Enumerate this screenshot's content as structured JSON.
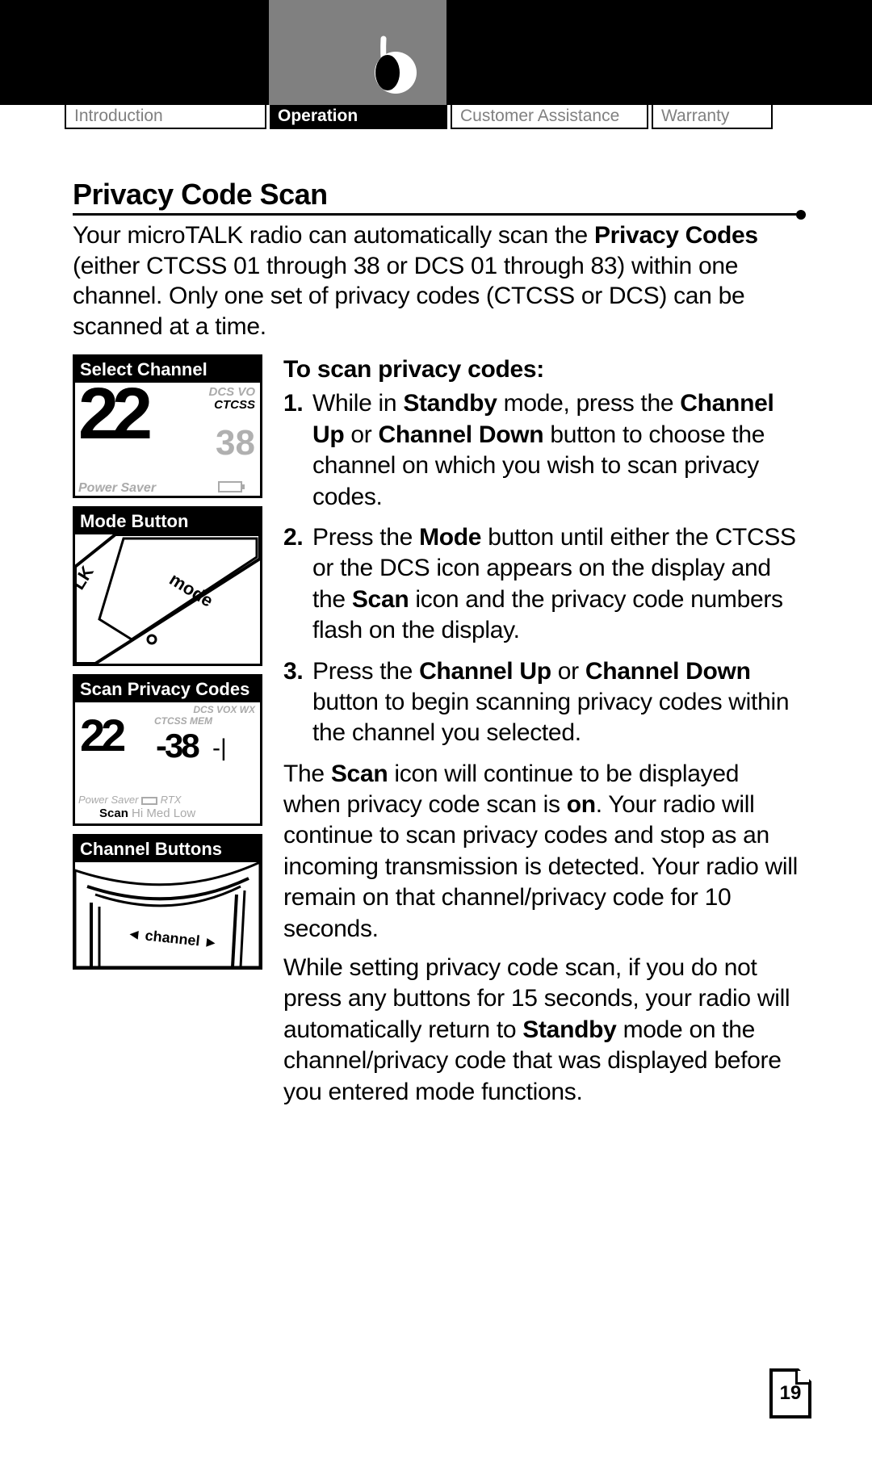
{
  "tabs": {
    "intro": "Introduction",
    "operation": "Operation",
    "customer": "Customer Assistance",
    "warranty": "Warranty"
  },
  "section_title": "Privacy Code Scan",
  "intro_text": "Your microTALK radio can automatically scan the <b>Privacy Codes</b> (either CTCSS 01 through 38 or DCS 01 through 83) within one channel. Only one set of privacy codes (CTCSS or DCS) can be scanned at a time.",
  "sidebar": {
    "box1": {
      "header": "Select Channel",
      "big_num": "22",
      "small_num": "38",
      "label1": "DCS VO",
      "label2": "CTCSS",
      "power": "Power Saver"
    },
    "box2": {
      "header": "Mode Button",
      "mode_text": "mode"
    },
    "box3": {
      "header": "Scan Privacy Codes",
      "n1": "22",
      "n2": "38",
      "top": "DCS VOX WX",
      "ctcss": "CTCSS MEM",
      "power": "Power Saver",
      "rtx": "RTX",
      "scan": "Scan",
      "hml": "Hi Med Low"
    },
    "box4": {
      "header": "Channel Buttons",
      "channel_text": "channel"
    }
  },
  "subhead": "To scan privacy codes:",
  "steps": [
    {
      "n": "1.",
      "html": "While in <b>Standby</b> mode, press the <b>Channel Up</b> or <b>Channel Down</b> button to choose the channel on which you wish to scan privacy codes."
    },
    {
      "n": "2.",
      "html": "Press the <b>Mode</b> button until either the CTCSS or the DCS icon appears on the display and the <b>Scan</b> icon and the privacy code numbers flash on the display."
    },
    {
      "n": "3.",
      "html": "Press the <b>Channel Up</b> or <b>Channel Down</b> button to begin scanning privacy codes within the channel you selected."
    }
  ],
  "para1": "The <b>Scan</b> icon will continue to be displayed when privacy code scan is <b>on</b>. Your radio will continue to scan privacy codes and stop as an incoming transmission is detected. Your radio will remain on that channel/privacy code for 10 seconds.",
  "para2": "While setting privacy code scan, if you do not press any buttons for 15 seconds, your radio will automatically return to <b>Standby</b> mode on the channel/privacy code that was displayed before you entered mode functions.",
  "page_number": "19",
  "colors": {
    "black": "#000000",
    "gray_tab": "#808080",
    "light_gray": "#aaaaaa",
    "white": "#ffffff"
  }
}
